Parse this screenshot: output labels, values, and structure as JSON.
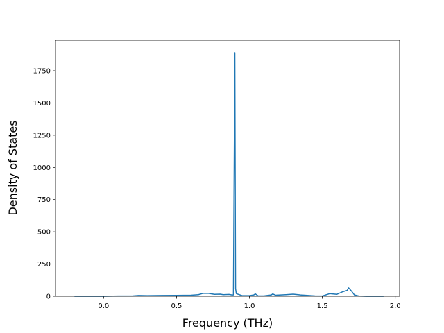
{
  "chart_data": {
    "type": "line",
    "x_label": "Frequency (THz)",
    "y_label": "Density of States",
    "x": [
      -0.2,
      0.0,
      0.1,
      0.2,
      0.24,
      0.3,
      0.4,
      0.5,
      0.6,
      0.65,
      0.68,
      0.72,
      0.76,
      0.8,
      0.82,
      0.86,
      0.88,
      0.89,
      0.9,
      0.905,
      0.91,
      0.95,
      1.0,
      1.03,
      1.04,
      1.06,
      1.1,
      1.15,
      1.16,
      1.18,
      1.25,
      1.3,
      1.35,
      1.45,
      1.5,
      1.55,
      1.6,
      1.64,
      1.67,
      1.68,
      1.7,
      1.72,
      1.75,
      1.8,
      1.92
    ],
    "series": [
      {
        "color": "#1f77b4",
        "values": [
          0,
          0,
          2,
          3,
          6,
          5,
          6,
          7,
          8,
          12,
          22,
          22,
          15,
          16,
          12,
          14,
          10,
          10,
          1890,
          60,
          20,
          5,
          5,
          10,
          18,
          3,
          3,
          10,
          18,
          8,
          12,
          16,
          10,
          3,
          2,
          20,
          15,
          35,
          45,
          65,
          40,
          10,
          2,
          0,
          0
        ]
      }
    ],
    "xlim": [
      -0.33,
      2.03
    ],
    "xticks": [
      {
        "value": 0,
        "label": "0.0"
      },
      {
        "value": 0.5,
        "label": "0.5"
      },
      {
        "value": 1,
        "label": "1.0"
      },
      {
        "value": 1.5,
        "label": "1.5"
      },
      {
        "value": 2,
        "label": "2.0"
      }
    ],
    "ylim": [
      0,
      1987
    ],
    "yticks": [
      0,
      250,
      500,
      750,
      1000,
      1250,
      1500,
      1750
    ],
    "grid": false
  }
}
